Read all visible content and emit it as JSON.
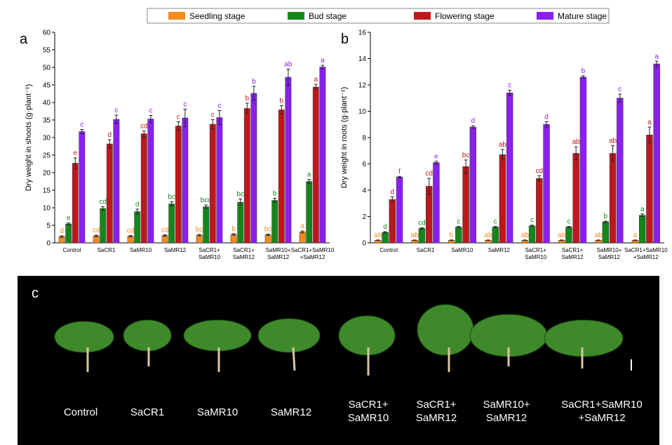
{
  "chart_data": [
    {
      "type": "bar",
      "panel": "a",
      "ylabel": "Dry weight in shoots (g·plant⁻¹)",
      "categories": [
        "Control",
        "SaCR1",
        "SaMR10",
        "SaMR12",
        "SaCR1+\nSaMR10",
        "SaCR1+\nSaMR12",
        "SaMR10+\nSaMR12",
        "SaCR1+SaMR10\n+SaMR12"
      ],
      "ylim": [
        0,
        60
      ],
      "yticks": [
        0,
        5,
        10,
        15,
        20,
        25,
        30,
        35,
        40,
        45,
        50,
        55,
        60
      ],
      "series": [
        {
          "name": "Seedling stage",
          "color": "#f58a1f",
          "values": [
            1.8,
            2.0,
            1.9,
            2.1,
            2.2,
            2.4,
            2.3,
            3.1
          ],
          "errors": [
            0.2,
            0.2,
            0.2,
            0.2,
            0.2,
            0.2,
            0.2,
            0.3
          ],
          "letters": [
            "d",
            "cd",
            "cd",
            "cd",
            "bc",
            "b",
            "bc",
            "a"
          ]
        },
        {
          "name": "Bud stage",
          "color": "#16861a",
          "values": [
            5.4,
            9.8,
            8.9,
            11.1,
            10.3,
            11.6,
            12.1,
            17.5
          ],
          "errors": [
            0.3,
            0.5,
            0.7,
            0.6,
            0.5,
            0.9,
            0.6,
            0.6
          ],
          "letters": [
            "e",
            "cd",
            "d",
            "bc",
            "bcd",
            "bc",
            "b",
            "a"
          ]
        },
        {
          "name": "Flowering stage",
          "color": "#c0171c",
          "values": [
            22.7,
            28.2,
            31.1,
            33.3,
            33.8,
            38.3,
            37.9,
            44.4
          ],
          "errors": [
            1.5,
            1.2,
            0.8,
            1.2,
            1.3,
            1.5,
            1.2,
            0.8
          ],
          "letters": [
            "e",
            "d",
            "cd",
            "c",
            "c",
            "b",
            "b",
            "a"
          ]
        },
        {
          "name": "Mature stage",
          "color": "#8a1ff0",
          "values": [
            31.7,
            35.2,
            35.3,
            35.6,
            35.7,
            42.6,
            47.2,
            50.1
          ],
          "errors": [
            0.6,
            1.2,
            1.0,
            2.5,
            2.0,
            2.0,
            2.3,
            0.5
          ],
          "letters": [
            "c",
            "c",
            "c",
            "c",
            "c",
            "b",
            "ab",
            "a"
          ]
        }
      ]
    },
    {
      "type": "bar",
      "panel": "b",
      "ylabel": "Dry weight in roots (g·plant⁻¹)",
      "categories": [
        "Control",
        "SaCR1",
        "SaMR10",
        "SaMR12",
        "SaCR1+\nSaMR10",
        "SaCR1+\nSaMR12",
        "SaMR10+\nSaMR12",
        "SaCR1+SaMR10\n+SaMR12"
      ],
      "ylim": [
        0,
        16
      ],
      "yticks": [
        0,
        2,
        4,
        6,
        8,
        10,
        12,
        14,
        16
      ],
      "series": [
        {
          "color": "#f58a1f",
          "values": [
            0.2,
            0.2,
            0.2,
            0.2,
            0.2,
            0.2,
            0.2,
            0.2
          ],
          "errors": [
            0.02,
            0.02,
            0.02,
            0.02,
            0.02,
            0.02,
            0.02,
            0.02
          ],
          "letters": [
            "ab",
            "ab",
            "b",
            "ab",
            "ab",
            "ab",
            "ab",
            "a"
          ]
        },
        {
          "color": "#16861a",
          "values": [
            0.8,
            1.1,
            1.2,
            1.2,
            1.3,
            1.2,
            1.6,
            2.1
          ],
          "errors": [
            0.05,
            0.05,
            0.05,
            0.05,
            0.05,
            0.05,
            0.05,
            0.1
          ],
          "letters": [
            "d",
            "cd",
            "c",
            "c",
            "c",
            "c",
            "b",
            "a"
          ]
        },
        {
          "color": "#c0171c",
          "values": [
            3.3,
            4.3,
            5.8,
            6.7,
            4.9,
            6.8,
            6.8,
            8.2
          ],
          "errors": [
            0.2,
            0.6,
            0.5,
            0.4,
            0.2,
            0.5,
            0.6,
            0.6
          ],
          "letters": [
            "d",
            "cd",
            "bc",
            "ab",
            "cd",
            "ab",
            "ab",
            "a"
          ]
        },
        {
          "color": "#8a1ff0",
          "values": [
            5.0,
            6.1,
            8.8,
            11.4,
            9.0,
            12.6,
            11.0,
            13.6
          ],
          "errors": [
            0.05,
            0.1,
            0.1,
            0.2,
            0.2,
            0.1,
            0.3,
            0.2
          ],
          "letters": [
            "f",
            "e",
            "d",
            "c",
            "d",
            "b",
            "c",
            "a"
          ]
        }
      ]
    }
  ],
  "photo": {
    "panel": "c",
    "labels": [
      "Control",
      "SaCR1",
      "SaMR10",
      "SaMR12",
      "SaCR1+\nSaMR10",
      "SaCR1+\nSaMR12",
      "SaMR10+\nSaMR12",
      "SaCR1+SaMR10\n+SaMR12"
    ]
  }
}
